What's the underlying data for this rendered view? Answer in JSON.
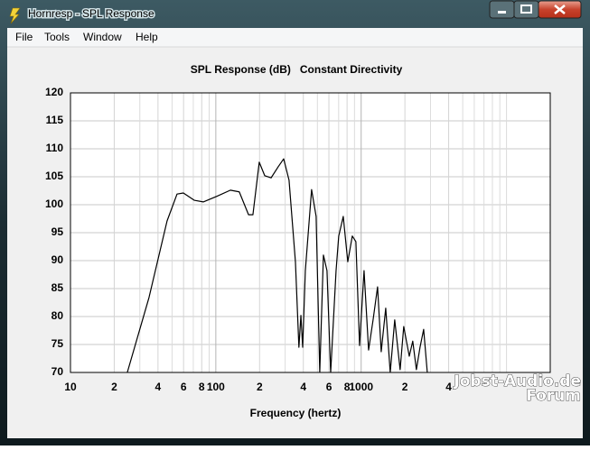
{
  "window": {
    "title": "Hornresp - SPL Response"
  },
  "menu": [
    "File",
    "Tools",
    "Window",
    "Help"
  ],
  "watermark": [
    "Jobst-Audio.de",
    "Forum"
  ],
  "chart_data": {
    "type": "line",
    "title": "SPL Response (dB)   Constant Directivity",
    "x_label": "Frequency (hertz)",
    "xscale": "log",
    "xlim": [
      10,
      20000
    ],
    "ylim": [
      70,
      120
    ],
    "xticks": [
      10,
      {
        "value": 20,
        "label": "2"
      },
      {
        "value": 40,
        "label": "4"
      },
      {
        "value": 60,
        "label": "6"
      },
      {
        "value": 80,
        "label": "8"
      },
      100,
      {
        "value": 200,
        "label": "2"
      },
      {
        "value": 400,
        "label": "4"
      },
      {
        "value": 600,
        "label": "6"
      },
      {
        "value": 800,
        "label": "8"
      },
      1000,
      {
        "value": 2000,
        "label": "2"
      },
      {
        "value": 4000,
        "label": "4"
      }
    ],
    "x_minor_grid": [
      30,
      50,
      70,
      90,
      300,
      500,
      700,
      900,
      3000,
      5000,
      6000,
      7000,
      8000,
      9000,
      10000,
      20000
    ],
    "yticks": [
      70,
      75,
      80,
      85,
      90,
      95,
      100,
      105,
      110,
      115,
      120
    ],
    "grid": true,
    "color": "#000000",
    "x": [
      24.6,
      34.7,
      46.2,
      54.1,
      59.8,
      71,
      82,
      101.6,
      126,
      145,
      168,
      180,
      199,
      217,
      240,
      269,
      293,
      319,
      353,
      373,
      385,
      396,
      413,
      456,
      490,
      519,
      550,
      582,
      617,
      672,
      701,
      753,
      809,
      869,
      920,
      975,
      1047,
      1125,
      1208,
      1297,
      1374,
      1476,
      1585,
      1702,
      1854,
      1963,
      2143,
      2265,
      2399,
      2541,
      2692,
      2851
    ],
    "values": [
      70,
      83.4,
      97.1,
      101.9,
      102.1,
      100.8,
      100.5,
      101.5,
      102.6,
      102.3,
      98.2,
      98.2,
      107.6,
      105.2,
      104.8,
      106.8,
      108.2,
      104.4,
      89.8,
      74.5,
      80.2,
      74.5,
      88.2,
      102.7,
      97.9,
      70,
      91.0,
      88.2,
      70,
      88.2,
      94.4,
      97.9,
      89.8,
      94.4,
      93.4,
      74.8,
      88.2,
      74.0,
      79.4,
      85.3,
      73.7,
      81.5,
      70,
      79.4,
      70.5,
      78.2,
      72.9,
      75.6,
      70.5,
      74.5,
      77.7,
      70
    ]
  }
}
